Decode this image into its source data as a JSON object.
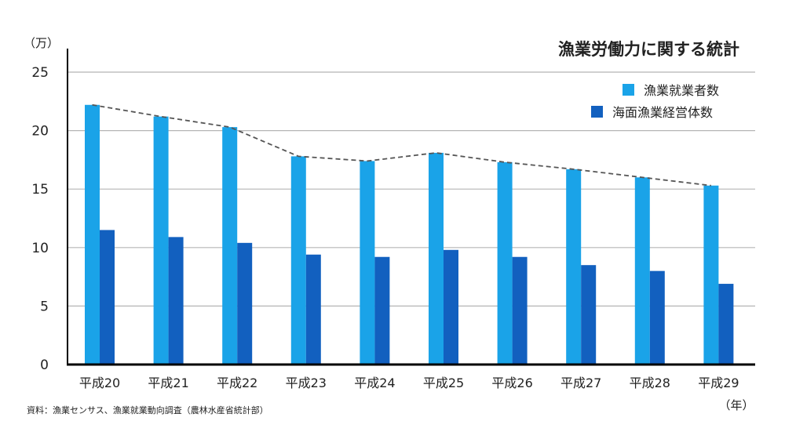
{
  "chart_data": {
    "type": "bar",
    "title": "漁業労働力に関する統計",
    "y_unit": "（万）",
    "x_unit": "（年）",
    "source": "資料：漁業センサス、漁業就業動向調査（農林水産省統計部）",
    "categories": [
      "平成20",
      "平成21",
      "平成22",
      "平成23",
      "平成24",
      "平成25",
      "平成26",
      "平成27",
      "平成28",
      "平成29"
    ],
    "ylim": [
      0,
      25
    ],
    "yticks": [
      0,
      5,
      10,
      15,
      20,
      25
    ],
    "grid": true,
    "legend_position": "top-right",
    "series": [
      {
        "name": "漁業就業者数",
        "color": "#1aa3e8",
        "values": [
          22.2,
          21.2,
          20.3,
          17.8,
          17.4,
          18.1,
          17.3,
          16.7,
          16.0,
          15.3
        ]
      },
      {
        "name": "海面漁業経営体数",
        "color": "#1260bf",
        "values": [
          11.5,
          10.9,
          10.4,
          9.4,
          9.2,
          9.8,
          9.2,
          8.5,
          8.0,
          6.9
        ]
      }
    ],
    "trend_line": {
      "series": 0,
      "style": "dashed",
      "color": "#555555"
    }
  }
}
